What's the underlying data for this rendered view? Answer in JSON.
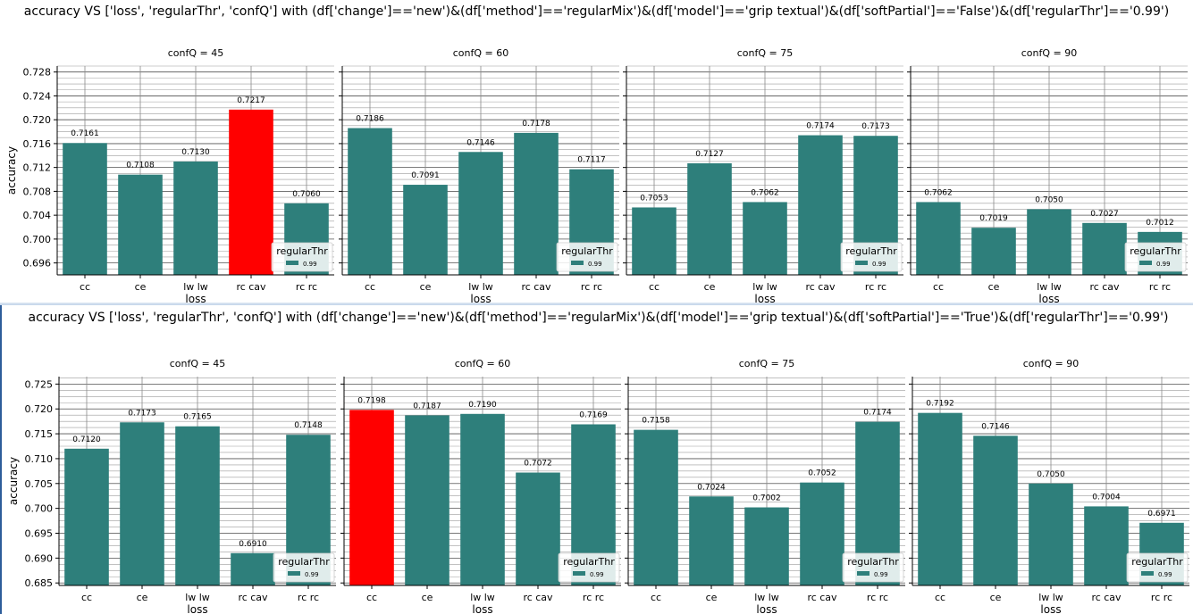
{
  "chart_data": [
    {
      "type": "bar",
      "title": "accuracy VS ['loss', 'regularThr', 'confQ'] with (df['change']=='new')&(df['method']=='regularMix')&(df['model']=='grip textual')&(df['softPartial']=='False')&(df['regularThr']=='0.99')",
      "ylabel": "accuracy",
      "xlabel": "loss",
      "ylim": [
        0.694,
        0.729
      ],
      "yticks": [
        "0.696",
        "0.700",
        "0.704",
        "0.708",
        "0.712",
        "0.716",
        "0.720",
        "0.724",
        "0.728"
      ],
      "categories": [
        "cc",
        "ce",
        "lw lw",
        "rc cav",
        "rc rc"
      ],
      "legend": {
        "title": "regularThr",
        "entries": [
          "0.99"
        ],
        "placement": "lower-right"
      },
      "colors": {
        "bar": "#2e7f7b",
        "highlight": "#ff0000"
      },
      "panels": [
        {
          "title": "confQ = 45",
          "values": [
            0.7161,
            0.7108,
            0.713,
            0.7217,
            0.706
          ],
          "labels": [
            "0.7161",
            "0.7108",
            "0.7130",
            "0.7217",
            "0.7060"
          ],
          "highlight": 3
        },
        {
          "title": "confQ = 60",
          "values": [
            0.7186,
            0.7091,
            0.7146,
            0.7178,
            0.7117
          ],
          "labels": [
            "0.7186",
            "0.7091",
            "0.7146",
            "0.7178",
            "0.7117"
          ],
          "highlight": null
        },
        {
          "title": "confQ = 75",
          "values": [
            0.7053,
            0.7127,
            0.7062,
            0.7174,
            0.7173
          ],
          "labels": [
            "0.7053",
            "0.7127",
            "0.7062",
            "0.7174",
            "0.7173"
          ],
          "highlight": null
        },
        {
          "title": "confQ = 90",
          "values": [
            0.7062,
            0.7019,
            0.705,
            0.7027,
            0.7012
          ],
          "labels": [
            "0.7062",
            "0.7019",
            "0.7050",
            "0.7027",
            "0.7012"
          ],
          "highlight": null
        }
      ]
    },
    {
      "type": "bar",
      "title": "accuracy VS ['loss', 'regularThr', 'confQ'] with (df['change']=='new')&(df['method']=='regularMix')&(df['model']=='grip textual')&(df['softPartial']=='True')&(df['regularThr']=='0.99')",
      "ylabel": "accuracy",
      "xlabel": "loss",
      "ylim": [
        0.6845,
        0.7265
      ],
      "yticks": [
        "0.685",
        "0.690",
        "0.695",
        "0.700",
        "0.705",
        "0.710",
        "0.715",
        "0.720",
        "0.725"
      ],
      "categories": [
        "cc",
        "ce",
        "lw lw",
        "rc cav",
        "rc rc"
      ],
      "legend": {
        "title": "regularThr",
        "entries": [
          "0.99"
        ],
        "placement": "lower-right"
      },
      "colors": {
        "bar": "#2e7f7b",
        "highlight": "#ff0000"
      },
      "panels": [
        {
          "title": "confQ = 45",
          "values": [
            0.712,
            0.7173,
            0.7165,
            0.691,
            0.7148
          ],
          "labels": [
            "0.7120",
            "0.7173",
            "0.7165",
            "0.6910",
            "0.7148"
          ],
          "highlight": null
        },
        {
          "title": "confQ = 60",
          "values": [
            0.7198,
            0.7187,
            0.719,
            0.7072,
            0.7169
          ],
          "labels": [
            "0.7198",
            "0.7187",
            "0.7190",
            "0.7072",
            "0.7169"
          ],
          "highlight": 0
        },
        {
          "title": "confQ = 75",
          "values": [
            0.7158,
            0.7024,
            0.7002,
            0.7052,
            0.7174
          ],
          "labels": [
            "0.7158",
            "0.7024",
            "0.7002",
            "0.7052",
            "0.7174"
          ],
          "highlight": null
        },
        {
          "title": "confQ = 90",
          "values": [
            0.7192,
            0.7146,
            0.705,
            0.7004,
            0.6971
          ],
          "labels": [
            "0.7192",
            "0.7146",
            "0.7050",
            "0.7004",
            "0.6971"
          ],
          "highlight": null
        }
      ]
    }
  ]
}
